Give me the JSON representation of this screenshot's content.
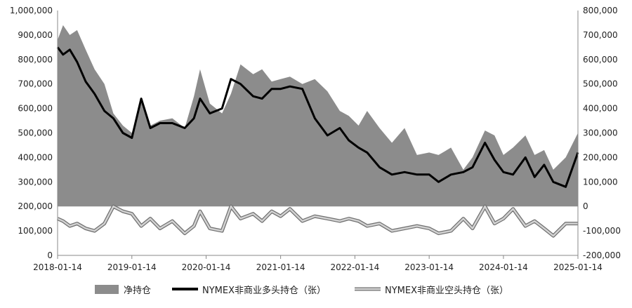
{
  "chart_data": {
    "type": "area+line",
    "title": "",
    "x_ticks": [
      "2018-01-14",
      "2019-01-14",
      "2020-01-14",
      "2021-01-14",
      "2022-01-14",
      "2023-01-14",
      "2024-01-14",
      "2025-01-14"
    ],
    "y_left_ticks": [
      "0",
      "100,000",
      "200,000",
      "300,000",
      "400,000",
      "500,000",
      "600,000",
      "700,000",
      "800,000",
      "900,000",
      "1,000,000"
    ],
    "y_right_ticks": [
      "-200,000",
      "-100,000",
      "0",
      "100,000",
      "200,000",
      "300,000",
      "400,000",
      "500,000",
      "600,000",
      "700,000",
      "800,000"
    ],
    "y_left_range": [
      0,
      1000000
    ],
    "y_right_range": [
      -200000,
      800000
    ],
    "grid": false,
    "legend_position": "bottom",
    "colors": {
      "net": "#8c8c8c",
      "long": "#000000",
      "short_outer": "#6f6f6f",
      "short_inner": "#d2d2d2"
    },
    "series": [
      {
        "name": "净持仓",
        "axis": "right",
        "style": "area",
        "points": [
          [
            "2018-01-14",
            680000
          ],
          [
            "2018-02-10",
            740000
          ],
          [
            "2018-03-15",
            700000
          ],
          [
            "2018-04-20",
            720000
          ],
          [
            "2018-06-01",
            640000
          ],
          [
            "2018-07-15",
            560000
          ],
          [
            "2018-09-01",
            500000
          ],
          [
            "2018-10-15",
            380000
          ],
          [
            "2018-12-01",
            330000
          ],
          [
            "2019-01-14",
            300000
          ],
          [
            "2019-03-01",
            440000
          ],
          [
            "2019-04-15",
            330000
          ],
          [
            "2019-06-01",
            350000
          ],
          [
            "2019-08-01",
            360000
          ],
          [
            "2019-10-01",
            320000
          ],
          [
            "2019-11-15",
            450000
          ],
          [
            "2019-12-15",
            560000
          ],
          [
            "2020-02-01",
            420000
          ],
          [
            "2020-04-01",
            380000
          ],
          [
            "2020-05-15",
            460000
          ],
          [
            "2020-07-01",
            580000
          ],
          [
            "2020-09-01",
            540000
          ],
          [
            "2020-10-15",
            560000
          ],
          [
            "2020-12-01",
            510000
          ],
          [
            "2021-01-14",
            520000
          ],
          [
            "2021-03-01",
            530000
          ],
          [
            "2021-05-01",
            500000
          ],
          [
            "2021-07-01",
            520000
          ],
          [
            "2021-09-01",
            470000
          ],
          [
            "2021-11-01",
            390000
          ],
          [
            "2021-12-15",
            370000
          ],
          [
            "2022-02-01",
            330000
          ],
          [
            "2022-03-15",
            390000
          ],
          [
            "2022-05-15",
            320000
          ],
          [
            "2022-07-15",
            260000
          ],
          [
            "2022-09-15",
            320000
          ],
          [
            "2022-11-15",
            210000
          ],
          [
            "2023-01-14",
            220000
          ],
          [
            "2023-03-01",
            210000
          ],
          [
            "2023-05-01",
            240000
          ],
          [
            "2023-07-01",
            150000
          ],
          [
            "2023-08-15",
            200000
          ],
          [
            "2023-10-15",
            310000
          ],
          [
            "2023-12-01",
            290000
          ],
          [
            "2024-01-14",
            210000
          ],
          [
            "2024-03-01",
            240000
          ],
          [
            "2024-05-01",
            290000
          ],
          [
            "2024-06-15",
            210000
          ],
          [
            "2024-08-01",
            230000
          ],
          [
            "2024-09-15",
            150000
          ],
          [
            "2024-11-15",
            200000
          ],
          [
            "2025-01-14",
            300000
          ]
        ]
      },
      {
        "name": "NYMEX非商业多头持仓（张）",
        "axis": "left",
        "style": "line",
        "points": [
          [
            "2018-01-14",
            850000
          ],
          [
            "2018-02-10",
            820000
          ],
          [
            "2018-03-15",
            840000
          ],
          [
            "2018-04-20",
            790000
          ],
          [
            "2018-06-01",
            710000
          ],
          [
            "2018-07-15",
            660000
          ],
          [
            "2018-09-01",
            590000
          ],
          [
            "2018-10-15",
            560000
          ],
          [
            "2018-12-01",
            500000
          ],
          [
            "2019-01-14",
            480000
          ],
          [
            "2019-03-01",
            640000
          ],
          [
            "2019-04-15",
            520000
          ],
          [
            "2019-06-01",
            540000
          ],
          [
            "2019-08-01",
            540000
          ],
          [
            "2019-10-01",
            520000
          ],
          [
            "2019-11-15",
            560000
          ],
          [
            "2019-12-15",
            640000
          ],
          [
            "2020-02-01",
            580000
          ],
          [
            "2020-04-01",
            600000
          ],
          [
            "2020-05-15",
            720000
          ],
          [
            "2020-07-01",
            700000
          ],
          [
            "2020-09-01",
            650000
          ],
          [
            "2020-10-15",
            640000
          ],
          [
            "2020-12-01",
            680000
          ],
          [
            "2021-01-14",
            680000
          ],
          [
            "2021-03-01",
            690000
          ],
          [
            "2021-05-01",
            680000
          ],
          [
            "2021-07-01",
            560000
          ],
          [
            "2021-09-01",
            490000
          ],
          [
            "2021-11-01",
            520000
          ],
          [
            "2021-12-15",
            470000
          ],
          [
            "2022-02-01",
            440000
          ],
          [
            "2022-03-15",
            420000
          ],
          [
            "2022-05-15",
            360000
          ],
          [
            "2022-07-15",
            330000
          ],
          [
            "2022-09-15",
            340000
          ],
          [
            "2022-11-15",
            330000
          ],
          [
            "2023-01-14",
            330000
          ],
          [
            "2023-03-01",
            300000
          ],
          [
            "2023-05-01",
            330000
          ],
          [
            "2023-07-01",
            340000
          ],
          [
            "2023-08-15",
            360000
          ],
          [
            "2023-10-15",
            460000
          ],
          [
            "2023-12-01",
            390000
          ],
          [
            "2024-01-14",
            340000
          ],
          [
            "2024-03-01",
            330000
          ],
          [
            "2024-05-01",
            400000
          ],
          [
            "2024-06-15",
            320000
          ],
          [
            "2024-08-01",
            370000
          ],
          [
            "2024-09-15",
            300000
          ],
          [
            "2024-11-15",
            280000
          ],
          [
            "2025-01-14",
            420000
          ]
        ]
      },
      {
        "name": "NYMEX非商业空头持仓（张）",
        "axis": "left",
        "style": "line",
        "points": [
          [
            "2018-01-14",
            150000
          ],
          [
            "2018-02-10",
            140000
          ],
          [
            "2018-03-15",
            120000
          ],
          [
            "2018-04-20",
            130000
          ],
          [
            "2018-06-01",
            110000
          ],
          [
            "2018-07-15",
            100000
          ],
          [
            "2018-09-01",
            130000
          ],
          [
            "2018-10-15",
            200000
          ],
          [
            "2018-12-01",
            180000
          ],
          [
            "2019-01-14",
            170000
          ],
          [
            "2019-03-01",
            120000
          ],
          [
            "2019-04-15",
            150000
          ],
          [
            "2019-06-01",
            110000
          ],
          [
            "2019-08-01",
            140000
          ],
          [
            "2019-10-01",
            90000
          ],
          [
            "2019-11-15",
            120000
          ],
          [
            "2019-12-15",
            180000
          ],
          [
            "2020-02-01",
            110000
          ],
          [
            "2020-04-01",
            100000
          ],
          [
            "2020-05-15",
            200000
          ],
          [
            "2020-07-01",
            150000
          ],
          [
            "2020-09-01",
            170000
          ],
          [
            "2020-10-15",
            140000
          ],
          [
            "2020-12-01",
            180000
          ],
          [
            "2021-01-14",
            160000
          ],
          [
            "2021-03-01",
            190000
          ],
          [
            "2021-05-01",
            140000
          ],
          [
            "2021-07-01",
            160000
          ],
          [
            "2021-09-01",
            150000
          ],
          [
            "2021-11-01",
            140000
          ],
          [
            "2021-12-15",
            150000
          ],
          [
            "2022-02-01",
            140000
          ],
          [
            "2022-03-15",
            120000
          ],
          [
            "2022-05-15",
            130000
          ],
          [
            "2022-07-15",
            100000
          ],
          [
            "2022-09-15",
            110000
          ],
          [
            "2022-11-15",
            120000
          ],
          [
            "2023-01-14",
            110000
          ],
          [
            "2023-03-01",
            90000
          ],
          [
            "2023-05-01",
            100000
          ],
          [
            "2023-07-01",
            150000
          ],
          [
            "2023-08-15",
            110000
          ],
          [
            "2023-10-15",
            200000
          ],
          [
            "2023-12-01",
            130000
          ],
          [
            "2024-01-14",
            150000
          ],
          [
            "2024-03-01",
            190000
          ],
          [
            "2024-05-01",
            120000
          ],
          [
            "2024-06-15",
            140000
          ],
          [
            "2024-08-01",
            110000
          ],
          [
            "2024-09-15",
            80000
          ],
          [
            "2024-11-15",
            130000
          ],
          [
            "2025-01-14",
            130000
          ]
        ]
      }
    ]
  }
}
